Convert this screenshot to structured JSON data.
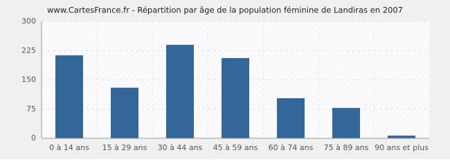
{
  "chart_data": {
    "type": "bar",
    "title": "www.CartesFrance.fr - Répartition par âge de la population féminine de Landiras en 2007",
    "categories": [
      "0 à 14 ans",
      "15 à 29 ans",
      "30 à 44 ans",
      "45 à 59 ans",
      "60 à 74 ans",
      "75 à 89 ans",
      "90 ans et plus"
    ],
    "values": [
      213,
      130,
      240,
      206,
      103,
      78,
      7
    ],
    "color": "#336699",
    "ylim": [
      0,
      300
    ],
    "yticks": [
      0,
      75,
      150,
      225,
      300
    ],
    "grid": true
  }
}
